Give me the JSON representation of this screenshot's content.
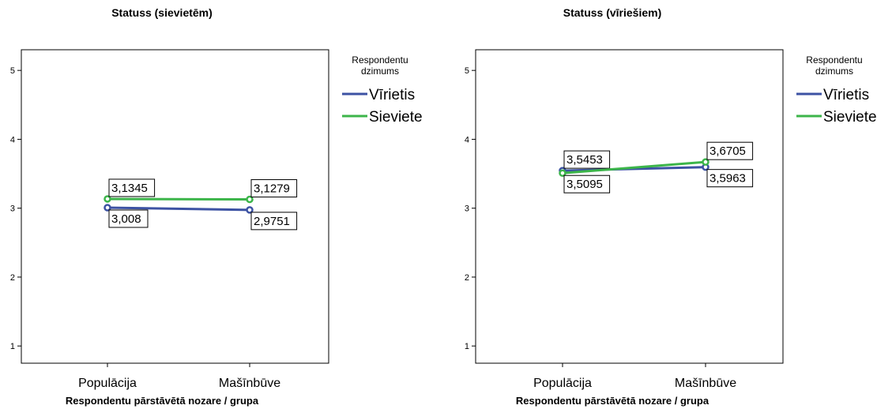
{
  "colors": {
    "male": "#3c52a3",
    "female": "#3cb54a"
  },
  "chart_data": [
    {
      "type": "line",
      "title": "Statuss (sievietēm)",
      "xlabel": "Respondentu pārstāvētā nozare / grupa",
      "ylabel": "",
      "ylim": [
        0.75,
        5.3
      ],
      "yticks": [
        "1",
        "2",
        "3",
        "4",
        "5"
      ],
      "categories": [
        "Populācija",
        "Mašīnbūve"
      ],
      "legend": {
        "title": [
          "Respondentu",
          "dzimums"
        ],
        "placement": "right"
      },
      "series": [
        {
          "name": "Vīrietis",
          "values": [
            3.008,
            2.9751
          ],
          "labels": [
            "3,008",
            "2,9751"
          ]
        },
        {
          "name": "Sieviete",
          "values": [
            3.1345,
            3.1279
          ],
          "labels": [
            "3,1345",
            "3,1279"
          ]
        }
      ]
    },
    {
      "type": "line",
      "title": "Statuss (vīriešiem)",
      "xlabel": "Respondentu pārstāvētā nozare / grupa",
      "ylabel": "",
      "ylim": [
        0.75,
        5.3
      ],
      "yticks": [
        "1",
        "2",
        "3",
        "4",
        "5"
      ],
      "categories": [
        "Populācija",
        "Mašīnbūve"
      ],
      "legend": {
        "title": [
          "Respondentu",
          "dzimums"
        ],
        "placement": "right"
      },
      "series": [
        {
          "name": "Vīrietis",
          "values": [
            3.5453,
            3.5963
          ],
          "labels": [
            "3,5453",
            "3,5963"
          ]
        },
        {
          "name": "Sieviete",
          "values": [
            3.5095,
            3.6705
          ],
          "labels": [
            "3,5095",
            "3,6705"
          ]
        }
      ]
    }
  ]
}
